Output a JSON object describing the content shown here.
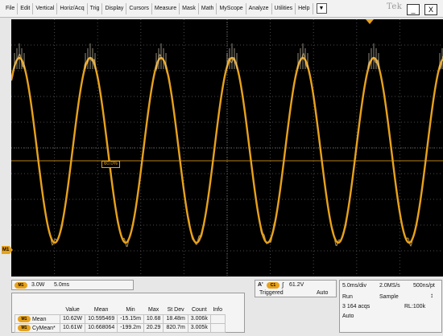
{
  "menu": {
    "items": [
      "File",
      "Edit",
      "Vertical",
      "Horiz/Acq",
      "Trig",
      "Display",
      "Cursors",
      "Measure",
      "Mask",
      "Math",
      "MyScope",
      "Analyze",
      "Utilities",
      "Help"
    ],
    "dropdown_symbol": "▼",
    "brand": "Tek",
    "minimize_symbol": "_",
    "close_symbol": "X"
  },
  "display": {
    "trace_color": "#e8a21a",
    "level_tag": "60.0%",
    "marker_label": "M1"
  },
  "channel_panel": {
    "chip": "M1",
    "scale": "3.0W",
    "time": "5.0ms"
  },
  "measurements": {
    "headers": [
      "Value",
      "Mean",
      "Min",
      "Max",
      "St Dev",
      "Count",
      "Info"
    ],
    "rows": [
      {
        "chip": "M1",
        "name": "Mean",
        "value": "10.62W",
        "mean": "10.595469",
        "min": "-15.15m",
        "max": "10.68",
        "stdev": "18.48m",
        "count": "3.006k",
        "info": ""
      },
      {
        "chip": "M1",
        "name": "CyMean*",
        "value": "10.61W",
        "mean": "10.668064",
        "min": "-199.2m",
        "max": "20.29",
        "stdev": "820.7m",
        "count": "3.005k",
        "info": ""
      }
    ]
  },
  "trigger": {
    "chip_a": "A'",
    "chip_ch": "C1",
    "slope": "∫",
    "level": "61.2V",
    "status": "Triggered",
    "mode": "Auto"
  },
  "acquisition": {
    "timebase": "5.0ms/div",
    "sample_rate": "2.0MS/s",
    "resolution": "500ns/pt",
    "state": "Run",
    "mode": "Sample",
    "acqs": "3 164 acqs",
    "record_length": "RL:100k",
    "trigger_mode": "Auto"
  }
}
